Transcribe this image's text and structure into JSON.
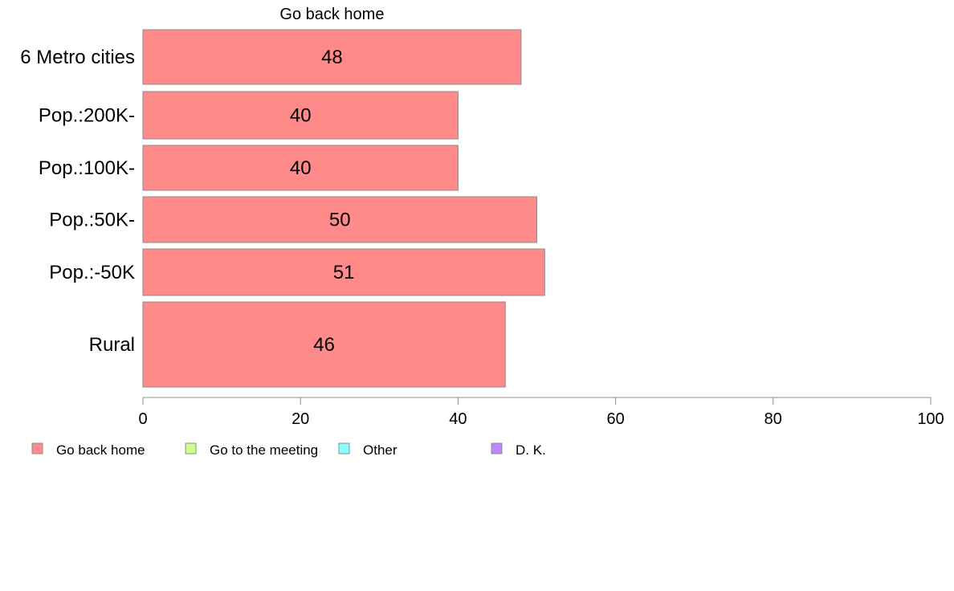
{
  "chart_data": {
    "type": "bar",
    "orientation": "horizontal",
    "title": "",
    "bar_title": "Go back home",
    "categories": [
      "6 Metro cities",
      "Pop.:200K-",
      "Pop.:100K-",
      "Pop.:50K-",
      "Pop.:-50K",
      "Rural"
    ],
    "series": [
      {
        "name": "Go back home",
        "color": "#ff8a8a",
        "values": [
          48,
          40,
          40,
          50,
          51,
          46
        ],
        "value_labels": [
          "48",
          "40",
          "40",
          "50",
          "51",
          "46"
        ]
      }
    ],
    "xlim": [
      0,
      100
    ],
    "xticks": [
      0,
      20,
      40,
      60,
      80,
      100
    ],
    "xtick_labels": [
      "0",
      "20",
      "40",
      "60",
      "80",
      "100"
    ],
    "grid": false,
    "legend_position": "bottom-left",
    "legend": [
      {
        "label": "Go back home",
        "color": "#ff8a8a"
      },
      {
        "label": "Go to the meeting",
        "color": "#ccff88"
      },
      {
        "label": "Other",
        "color": "#88ffff"
      },
      {
        "label": "D. K.",
        "color": "#bb88ff"
      }
    ]
  }
}
